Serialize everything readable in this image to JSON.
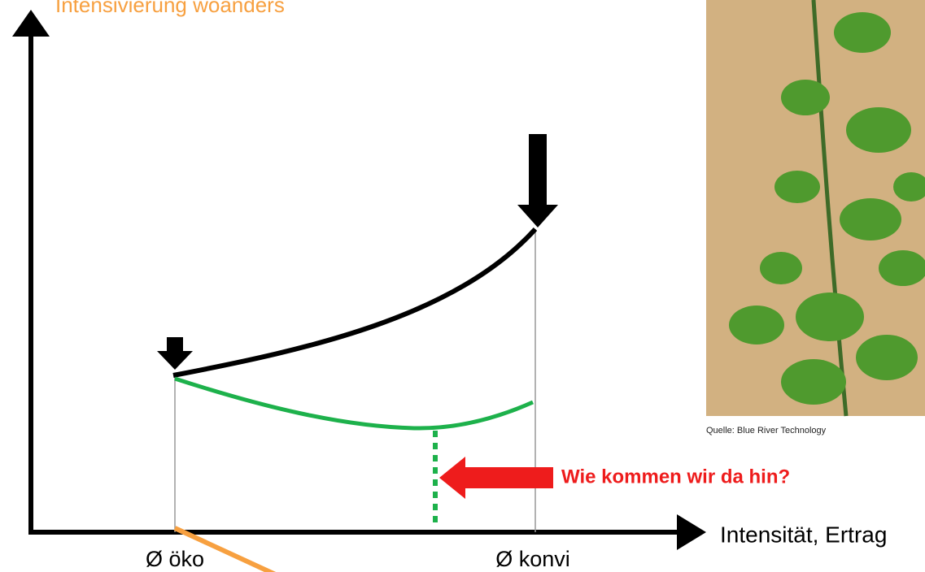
{
  "title": "Intensivierung woanders",
  "photo_credit": "Quelle: Blue River Technology",
  "question": "Wie kommen wir da hin?",
  "x_axis_label": "Intensität, Ertrag",
  "x_labels": [
    "Ø öko",
    "Ø konvi"
  ]
}
